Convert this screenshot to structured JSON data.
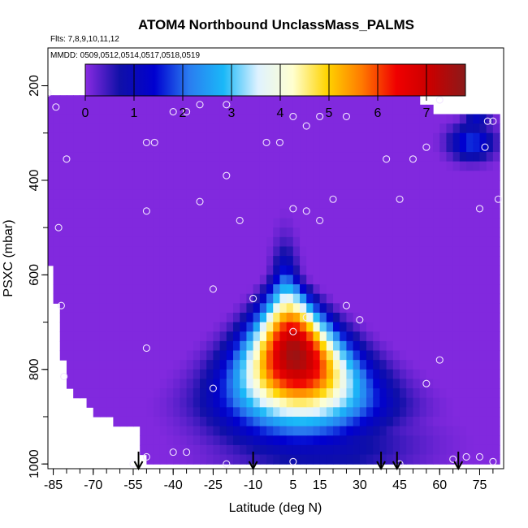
{
  "chart_data": {
    "type": "heatmap",
    "title": "ATOM4 Northbound UnclassMass_PALMS",
    "flights_note": "Flts: 7,8,9,10,11,12",
    "dates_note": "MMDD: 0509,0512,0514,0517,0518,0519",
    "xlabel": "Latitude (deg N)",
    "ylabel": "PSXC (mbar)",
    "xlim": [
      -87,
      84
    ],
    "ylim": [
      1010,
      120
    ],
    "y_reversed": true,
    "x_ticks": [
      -85,
      -70,
      -55,
      -40,
      -25,
      -10,
      5,
      15,
      30,
      45,
      60,
      75
    ],
    "y_ticks": [
      200,
      400,
      600,
      800,
      1000
    ],
    "colorbar": {
      "min": 0,
      "max": 7.8,
      "ticks": [
        0,
        1,
        2,
        3,
        4,
        5,
        6,
        7
      ],
      "colors": [
        "#8a2be2",
        "#1010a8",
        "#0000d0",
        "#2a7cf0",
        "#1ab8f8",
        "#dff2ff",
        "#ffffd0",
        "#ffd400",
        "#ff7a00",
        "#f00000",
        "#c80000",
        "#8b1a1a"
      ]
    },
    "background_value": 0.05,
    "coverage": {
      "latitude": [
        -87.5,
        -85,
        -80,
        -70,
        -60,
        -54,
        -50,
        -40,
        -30,
        -20,
        -10,
        0,
        10,
        20,
        30,
        40,
        50,
        60,
        65,
        70,
        75,
        80,
        82
      ],
      "top_pressure": [
        222,
        222,
        222,
        210,
        210,
        210,
        210,
        210,
        210,
        210,
        222,
        222,
        222,
        222,
        222,
        222,
        222,
        262,
        262,
        262,
        262,
        262,
        262
      ],
      "bottom_pressure": [
        560,
        600,
        830,
        890,
        920,
        920,
        1000,
        1000,
        1000,
        1000,
        1000,
        1000,
        1000,
        1000,
        1000,
        1000,
        1000,
        1000,
        1000,
        1000,
        1000,
        1000,
        1000
      ]
    },
    "features": [
      {
        "name": "main plume",
        "lat": 5,
        "p": 760,
        "peak": 7.6,
        "lat_width_min": 5,
        "lat_width_max": 31,
        "p_center": 770,
        "p_half_thickness": 200
      },
      {
        "name": "upper layer band",
        "lat": 72,
        "p": 320,
        "peak": 1.8,
        "lat_width": 8,
        "p_half_thickness": 35
      },
      {
        "name": "upper layer band 2",
        "lat": 74,
        "p": 275,
        "peak": 1.2,
        "lat_width": 5,
        "p_half_thickness": 18
      }
    ],
    "sample_points": [
      [
        -87,
        215
      ],
      [
        -84,
        245
      ],
      [
        -70,
        210
      ],
      [
        -80,
        355
      ],
      [
        -83,
        500
      ],
      [
        -82,
        665
      ],
      [
        -81,
        815
      ],
      [
        -50,
        320
      ],
      [
        -47,
        320
      ],
      [
        -40,
        255
      ],
      [
        -35,
        255
      ],
      [
        -30,
        240
      ],
      [
        -20,
        240
      ],
      [
        -15,
        210
      ],
      [
        -50,
        465
      ],
      [
        -30,
        445
      ],
      [
        -20,
        390
      ],
      [
        -15,
        485
      ],
      [
        -25,
        630
      ],
      [
        -10,
        650
      ],
      [
        -50,
        755
      ],
      [
        -25,
        840
      ],
      [
        -55,
        1000
      ],
      [
        -50,
        985
      ],
      [
        -40,
        975
      ],
      [
        -35,
        975
      ],
      [
        -20,
        1000
      ],
      [
        -5,
        320
      ],
      [
        0,
        320
      ],
      [
        5,
        460
      ],
      [
        5,
        265
      ],
      [
        10,
        285
      ],
      [
        15,
        265
      ],
      [
        10,
        465
      ],
      [
        15,
        485
      ],
      [
        20,
        440
      ],
      [
        25,
        265
      ],
      [
        25,
        665
      ],
      [
        30,
        695
      ],
      [
        5,
        720
      ],
      [
        10,
        690
      ],
      [
        40,
        355
      ],
      [
        45,
        440
      ],
      [
        50,
        355
      ],
      [
        55,
        330
      ],
      [
        55,
        830
      ],
      [
        60,
        780
      ],
      [
        60,
        230
      ],
      [
        65,
        990
      ],
      [
        70,
        985
      ],
      [
        75,
        460
      ],
      [
        75,
        985
      ],
      [
        78,
        275
      ],
      [
        80,
        275
      ],
      [
        77,
        330
      ],
      [
        82,
        440
      ],
      [
        80,
        995
      ],
      [
        5,
        995
      ],
      [
        45,
        1000
      ]
    ],
    "arrows_latitude": [
      -53,
      -10,
      38,
      44,
      67
    ]
  }
}
